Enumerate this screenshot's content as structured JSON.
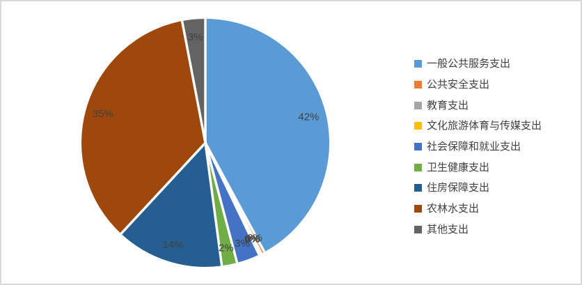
{
  "chart_data": {
    "type": "pie",
    "title": "",
    "legend_position": "right",
    "label_color": "#404040",
    "legend_text_color": "#404040",
    "start_angle_deg": 0,
    "direction": "clockwise",
    "slices": [
      {
        "name": "一般公共服务支出",
        "label": "42%",
        "value": 42,
        "color": "#5B9BD5"
      },
      {
        "name": "公共安全支出",
        "label": "0%",
        "value": 0.45,
        "color": "#ED7D31"
      },
      {
        "name": "教育支出",
        "label": "0%",
        "value": 0.2,
        "color": "#A5A5A5"
      },
      {
        "name": "文化旅游体育与传媒支出",
        "label": "0%",
        "value": 0.12,
        "color": "#FFC000"
      },
      {
        "name": "社会保障和就业支出",
        "label": "3%",
        "value": 3,
        "color": "#4472C4"
      },
      {
        "name": "卫生健康支出",
        "label": "2%",
        "value": 2,
        "color": "#70AD47"
      },
      {
        "name": "住房保障支出",
        "label": "14%",
        "value": 14,
        "color": "#255E91"
      },
      {
        "name": "农林水支出",
        "label": "35%",
        "value": 35,
        "color": "#9E480E"
      },
      {
        "name": "其他支出",
        "label": "3%",
        "value": 3,
        "color": "#636363"
      }
    ]
  }
}
